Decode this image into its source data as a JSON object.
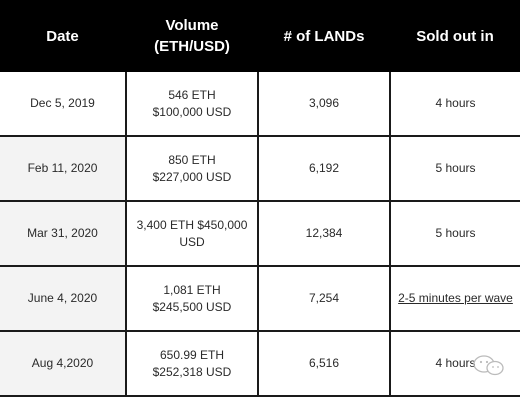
{
  "table": {
    "headers": [
      "Date",
      "Volume\n(ETH/USD)",
      "# of LANDs",
      "Sold out in"
    ],
    "rows": [
      {
        "date": "Dec 5, 2019",
        "volume_eth": "546 ETH",
        "volume_usd": "$100,000 USD",
        "lands": "3,096",
        "sold_out": "4 hours"
      },
      {
        "date": "Feb 11, 2020",
        "volume_eth": "850 ETH",
        "volume_usd": "$227,000 USD",
        "lands": "6,192",
        "sold_out": "5 hours"
      },
      {
        "date": "Mar 31, 2020",
        "volume_eth": "3,400 ETH $450,000",
        "volume_usd": "USD",
        "lands": "12,384",
        "sold_out": "5 hours"
      },
      {
        "date": "June 4, 2020",
        "volume_eth": "1,081 ETH",
        "volume_usd": "$245,500 USD",
        "lands": "7,254",
        "sold_out": "2-5 minutes per wave"
      },
      {
        "date": "Aug 4,2020",
        "volume_eth": "650.99 ETH",
        "volume_usd": "$252,318 USD",
        "lands": "6,516",
        "sold_out": "4 hours"
      }
    ]
  },
  "watermark_icon": "wechat-icon"
}
